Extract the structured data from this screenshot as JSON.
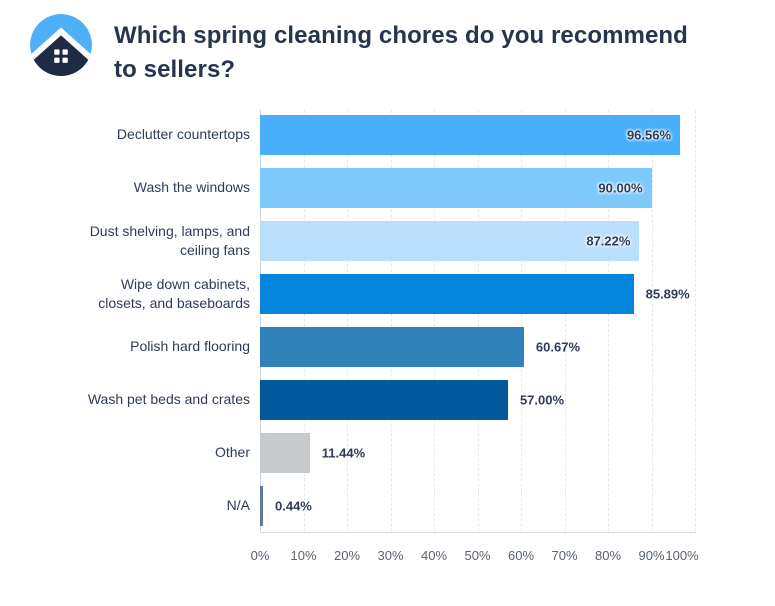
{
  "header": {
    "logo_name": "house-logo",
    "title": "Which spring cleaning chores do you recommend to sellers?"
  },
  "brand_colors": {
    "logo_light_blue": "#4FB0F7",
    "logo_navy": "#1F2B45",
    "title_navy": "#27344E"
  },
  "chart_data": {
    "type": "bar",
    "orientation": "horizontal",
    "title": "Which spring cleaning chores do you recommend to sellers?",
    "categories": [
      "Declutter countertops",
      "Wash the windows",
      "Dust shelving, lamps, and ceiling fans",
      "Wipe down cabinets, closets, and baseboards",
      "Polish hard flooring",
      "Wash pet beds and crates",
      "Other",
      "N/A"
    ],
    "values": [
      96.56,
      90.0,
      87.22,
      85.89,
      60.67,
      57.0,
      11.44,
      0.44
    ],
    "value_labels": [
      "96.56%",
      "90.00%",
      "87.22%",
      "85.89%",
      "60.67%",
      "57.00%",
      "11.44%",
      "0.44%"
    ],
    "bar_colors": [
      "#47AFFC",
      "#7DC9FC",
      "#B9DFFC",
      "#0585DB",
      "#3181BA",
      "#02599C",
      "#C6CACD",
      "#64798C"
    ],
    "label_inside": [
      true,
      true,
      true,
      false,
      false,
      false,
      false,
      false
    ],
    "xlabel": "",
    "ylabel": "",
    "xlim": [
      0,
      100
    ],
    "x_ticks": [
      "0%",
      "10%",
      "20%",
      "30%",
      "40%",
      "50%",
      "60%",
      "70%",
      "80%",
      "90%",
      "100%"
    ],
    "grid": "vertical-dashed",
    "legend": "none"
  }
}
